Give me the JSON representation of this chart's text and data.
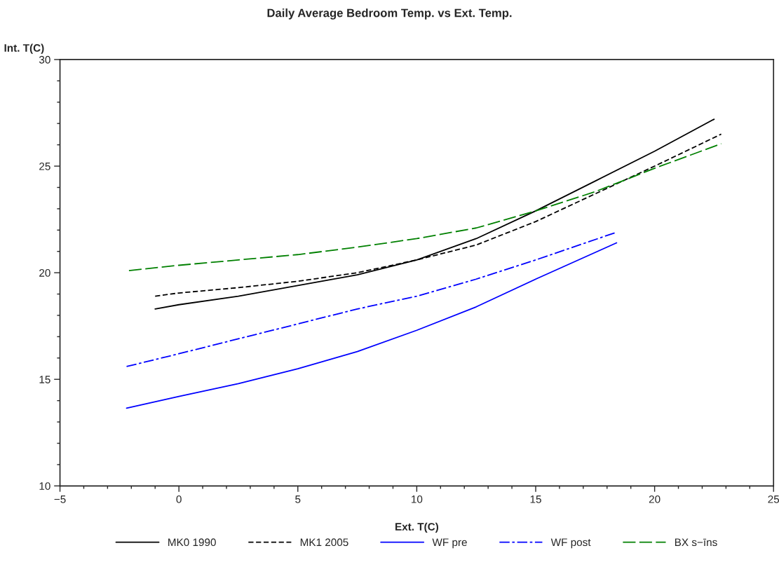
{
  "chart_data": {
    "type": "line",
    "title": "Daily Average Bedroom Temp. vs Ext. Temp.",
    "xlabel": "Ext. T(C)",
    "ylabel": "Int. T(C)",
    "xlim": [
      -5,
      25
    ],
    "xticks": [
      -5,
      0,
      5,
      10,
      15,
      20,
      25
    ],
    "ylim": [
      10,
      30
    ],
    "yticks": [
      10,
      15,
      20,
      25,
      30
    ],
    "grid": false,
    "legend": "bottom",
    "marker": "none",
    "series": [
      {
        "name": "MK0 1990",
        "color": "#000000",
        "line_style": "solid",
        "x": [
          -1,
          0,
          2.5,
          5,
          7.5,
          10,
          12.5,
          15,
          17.5,
          20,
          22.5
        ],
        "values": [
          18.3,
          18.5,
          18.9,
          19.4,
          19.9,
          20.6,
          21.6,
          22.9,
          24.3,
          25.7,
          27.2
        ]
      },
      {
        "name": "MK1 2005",
        "color": "#000000",
        "line_style": "dashed",
        "x": [
          -1,
          0,
          2.5,
          5,
          7.5,
          10,
          12.5,
          15,
          17.5,
          20,
          22.8
        ],
        "values": [
          18.9,
          19.05,
          19.3,
          19.6,
          20.0,
          20.6,
          21.3,
          22.4,
          23.7,
          25.0,
          26.5
        ]
      },
      {
        "name": "WF pre",
        "color": "#0000ff",
        "line_style": "solid",
        "x": [
          -2.2,
          0,
          2.5,
          5,
          7.5,
          10,
          12.5,
          15,
          18.4
        ],
        "values": [
          13.65,
          14.2,
          14.8,
          15.5,
          16.3,
          17.3,
          18.4,
          19.7,
          21.4
        ]
      },
      {
        "name": "WF post",
        "color": "#0000ff",
        "line_style": "dashdot",
        "x": [
          -2.2,
          0,
          2.5,
          5,
          7.5,
          10,
          12.5,
          15,
          18.4
        ],
        "values": [
          15.6,
          16.2,
          16.9,
          17.6,
          18.3,
          18.9,
          19.7,
          20.6,
          21.9
        ]
      },
      {
        "name": "BX s−īns",
        "color": "#008000",
        "line_style": "longdash",
        "x": [
          -2.1,
          0,
          2.5,
          5,
          7.5,
          10,
          12.5,
          15,
          17.5,
          20,
          22.8
        ],
        "values": [
          20.1,
          20.35,
          20.6,
          20.85,
          21.2,
          21.6,
          22.1,
          22.9,
          23.8,
          24.9,
          26.05
        ]
      }
    ]
  }
}
